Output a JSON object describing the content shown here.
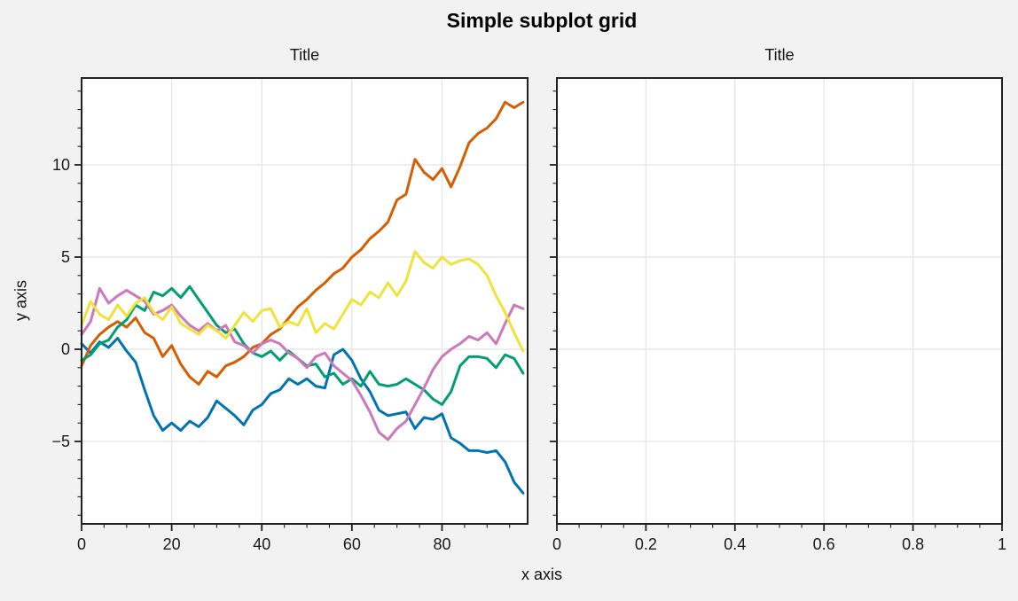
{
  "figure": {
    "suptitle": "Simple subplot grid",
    "xlabel": "x axis",
    "ylabel": "y axis",
    "colors": {
      "background": "#f2f2f2",
      "axes_background": "#ffffff",
      "spine": "#212121",
      "grid": "#e7e7e7",
      "tick": "#212121",
      "text": "#000000"
    }
  },
  "chart_data": [
    {
      "id": "left-subplot",
      "type": "line",
      "title": "Title",
      "xlim": [
        0,
        99
      ],
      "ylim": [
        -9.47,
        14.71
      ],
      "grid": true,
      "legend": "none",
      "line_width": 3,
      "xticks": {
        "values": [
          0,
          20,
          40,
          60,
          80
        ],
        "labels": [
          "0",
          "20",
          "40",
          "60",
          "80"
        ],
        "minor_step": 5
      },
      "yticks": {
        "values": [
          -5,
          0,
          5,
          10
        ],
        "labels": [
          "−5",
          "0",
          "5",
          "10"
        ],
        "minor_step": 1
      },
      "x_start": 0,
      "x_step": 2,
      "series": [
        {
          "name": "blue",
          "color": "#0173b2",
          "values": [
            0.3,
            -0.2,
            0.4,
            0.1,
            0.6,
            -0.1,
            -0.7,
            -2.2,
            -3.6,
            -4.4,
            -4.0,
            -4.4,
            -3.9,
            -4.2,
            -3.7,
            -2.8,
            -3.2,
            -3.6,
            -4.1,
            -3.3,
            -3.0,
            -2.4,
            -2.2,
            -1.6,
            -1.9,
            -1.6,
            -2.0,
            -2.1,
            -0.3,
            0.0,
            -0.6,
            -1.6,
            -2.3,
            -3.3,
            -3.6,
            -3.5,
            -3.4,
            -4.3,
            -3.7,
            -3.8,
            -3.5,
            -4.8,
            -5.1,
            -5.5,
            -5.5,
            -5.6,
            -5.5,
            -6.1,
            -7.2,
            -7.8
          ]
        },
        {
          "name": "orange",
          "color": "#d55e00",
          "values": [
            -0.9,
            0.2,
            0.8,
            1.2,
            1.5,
            1.2,
            1.7,
            0.9,
            0.6,
            -0.4,
            0.2,
            -0.8,
            -1.5,
            -1.9,
            -1.2,
            -1.5,
            -0.9,
            -0.7,
            -0.4,
            0.1,
            0.3,
            0.8,
            1.1,
            1.7,
            2.3,
            2.7,
            3.2,
            3.6,
            4.1,
            4.4,
            5.0,
            5.4,
            6.0,
            6.4,
            6.9,
            8.1,
            8.4,
            10.3,
            9.6,
            9.2,
            9.8,
            8.8,
            9.9,
            11.2,
            11.7,
            12.0,
            12.5,
            13.4,
            13.1,
            13.4
          ]
        },
        {
          "name": "green",
          "color": "#029e73",
          "values": [
            -0.6,
            -0.3,
            0.3,
            0.5,
            1.2,
            1.6,
            2.4,
            2.1,
            3.1,
            2.9,
            3.3,
            2.8,
            3.4,
            2.7,
            2.0,
            1.3,
            0.9,
            1.1,
            0.3,
            -0.2,
            -0.4,
            -0.1,
            -0.6,
            -0.1,
            -0.5,
            -0.9,
            -0.8,
            -1.5,
            -1.3,
            -1.9,
            -1.6,
            -2.0,
            -1.2,
            -1.9,
            -2.0,
            -1.9,
            -1.6,
            -1.9,
            -2.2,
            -2.7,
            -3.0,
            -2.3,
            -0.9,
            -0.4,
            -0.4,
            -0.5,
            -1.0,
            -0.3,
            -0.5,
            -1.3
          ]
        },
        {
          "name": "pink",
          "color": "#cc78bc",
          "values": [
            0.8,
            1.5,
            3.3,
            2.5,
            2.9,
            3.2,
            2.9,
            2.6,
            1.9,
            2.1,
            2.4,
            1.8,
            1.3,
            1.0,
            1.4,
            1.0,
            1.3,
            0.4,
            0.2,
            -0.2,
            0.3,
            0.5,
            0.3,
            -0.2,
            -0.5,
            -1.0,
            -0.4,
            -0.2,
            -0.9,
            -1.3,
            -1.7,
            -2.5,
            -3.4,
            -4.5,
            -4.9,
            -4.3,
            -3.9,
            -3.0,
            -2.1,
            -1.1,
            -0.4,
            0.0,
            0.3,
            0.7,
            0.5,
            0.9,
            0.3,
            1.4,
            2.4,
            2.2
          ]
        },
        {
          "name": "yellow",
          "color": "#efe33b",
          "values": [
            1.3,
            2.6,
            1.9,
            1.6,
            2.4,
            1.8,
            2.5,
            2.8,
            2.0,
            1.6,
            2.3,
            1.4,
            1.1,
            0.8,
            1.3,
            1.0,
            0.6,
            1.3,
            2.0,
            1.5,
            2.1,
            2.2,
            1.2,
            1.5,
            1.3,
            2.2,
            0.9,
            1.4,
            1.1,
            1.9,
            2.7,
            2.4,
            3.1,
            2.8,
            3.6,
            2.9,
            3.7,
            5.3,
            4.7,
            4.4,
            5.0,
            4.6,
            4.8,
            4.9,
            4.6,
            4.0,
            2.9,
            2.0,
            0.9,
            -0.1
          ]
        }
      ]
    },
    {
      "id": "right-subplot",
      "type": "line",
      "title": "Title",
      "xlim": [
        0,
        1
      ],
      "ylim": [
        -9.47,
        14.71
      ],
      "grid": true,
      "legend": "none",
      "line_width": 3,
      "xticks": {
        "values": [
          0,
          0.2,
          0.4,
          0.6,
          0.8,
          1
        ],
        "labels": [
          "0",
          "0.2",
          "0.4",
          "0.6",
          "0.8",
          "1"
        ],
        "minor_step": 0.05
      },
      "yticks": {
        "values": [
          -5,
          0,
          5,
          10
        ],
        "labels": [
          "",
          "",
          "",
          ""
        ],
        "minor_step": 1
      },
      "series": []
    }
  ]
}
